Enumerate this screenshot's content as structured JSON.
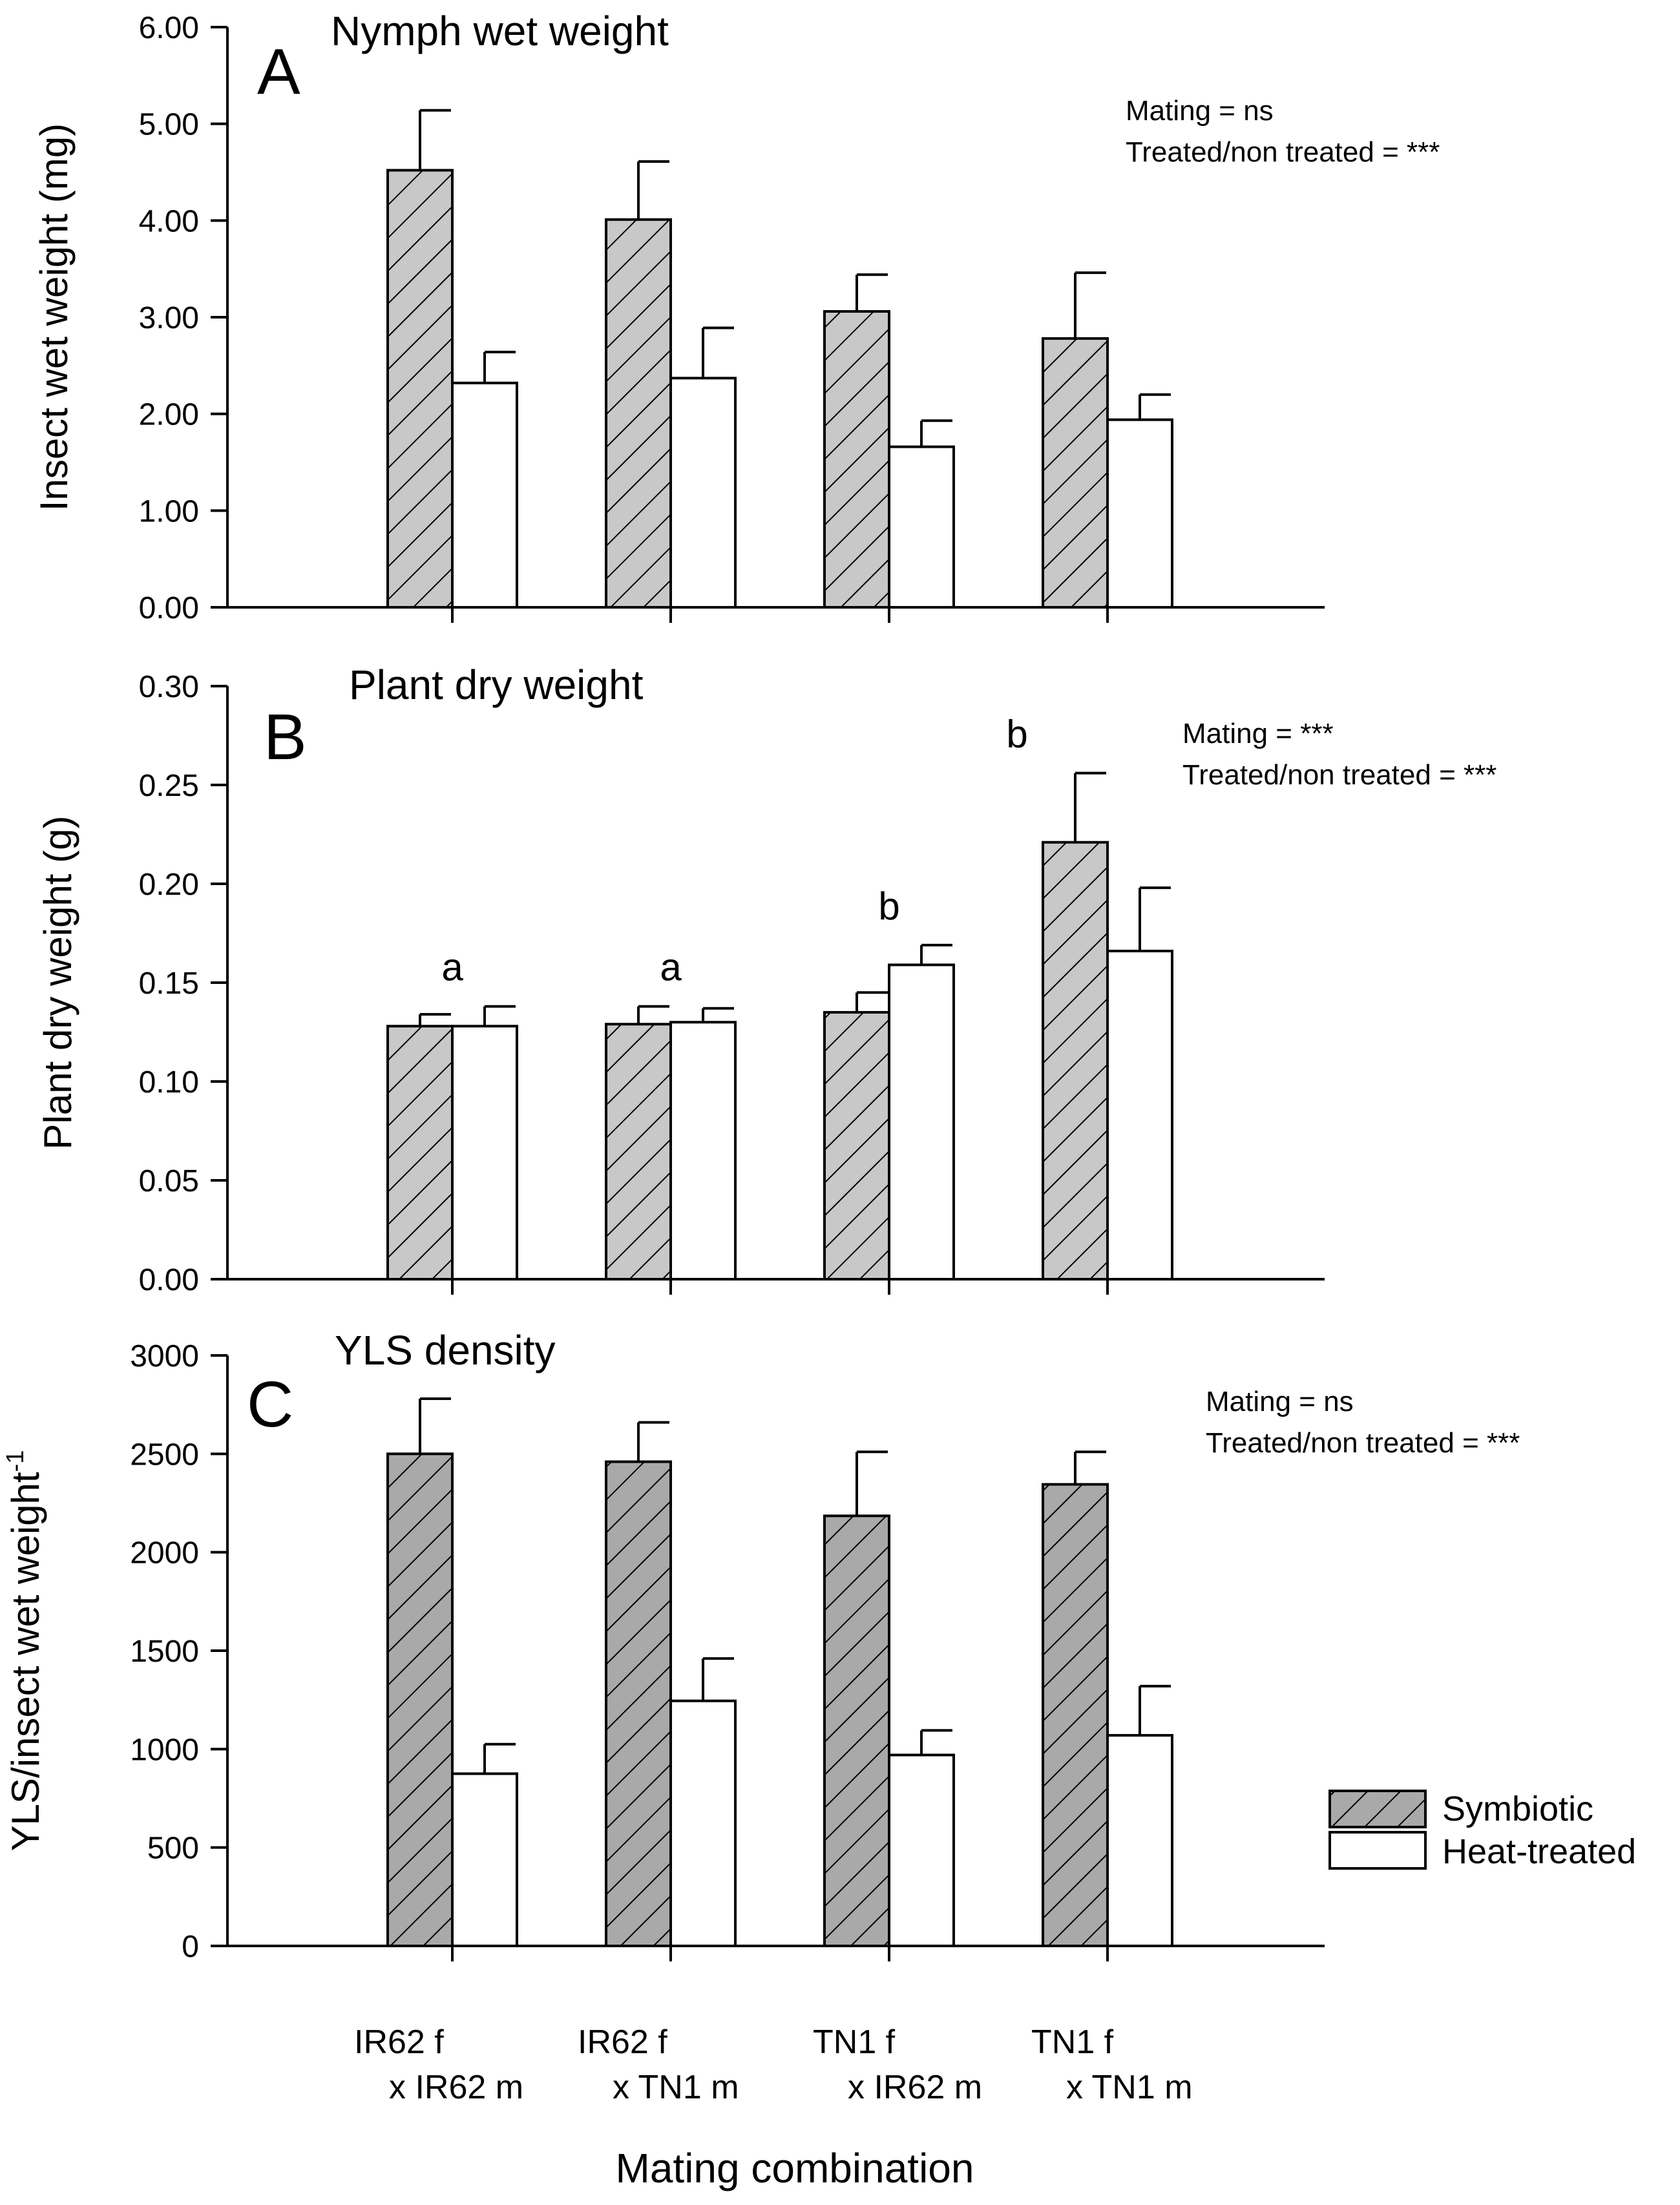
{
  "chart_data": [
    {
      "type": "bar",
      "panel": "A",
      "title": "Nymph wet weight",
      "ylabel": "Insect wet weight (mg)",
      "ylim": [
        0,
        6
      ],
      "yticks": [
        0,
        1,
        2,
        3,
        4,
        5,
        6
      ],
      "ytick_labels": [
        "0.00",
        "1.00",
        "2.00",
        "3.00",
        "4.00",
        "5.00",
        "6.00"
      ],
      "categories": [
        "IR62 f x IR62 m",
        "IR62 f x TN1 m",
        "TN1 f x IR62 m",
        "TN1 f x TN1 m"
      ],
      "series": [
        {
          "name": "Symbiotic",
          "values": [
            4.52,
            4.01,
            3.06,
            2.78
          ],
          "errors": [
            0.62,
            0.6,
            0.38,
            0.68
          ]
        },
        {
          "name": "Heat-treated",
          "values": [
            2.32,
            2.37,
            1.66,
            1.94
          ],
          "errors": [
            0.32,
            0.52,
            0.27,
            0.26
          ]
        }
      ],
      "stats": [
        "Mating = ns",
        "Treated/non treated = ***"
      ],
      "letters": []
    },
    {
      "type": "bar",
      "panel": "B",
      "title": "Plant dry weight",
      "ylabel": "Plant dry weight (g)",
      "ylim": [
        0,
        0.3
      ],
      "yticks": [
        0,
        0.05,
        0.1,
        0.15,
        0.2,
        0.25,
        0.3
      ],
      "ytick_labels": [
        "0.00",
        "0.05",
        "0.10",
        "0.15",
        "0.20",
        "0.25",
        "0.30"
      ],
      "categories": [
        "IR62 f x IR62 m",
        "IR62 f x TN1 m",
        "TN1 f x IR62 m",
        "TN1 f x TN1 m"
      ],
      "series": [
        {
          "name": "Symbiotic",
          "values": [
            0.128,
            0.129,
            0.135,
            0.221
          ],
          "errors": [
            0.006,
            0.009,
            0.01,
            0.035
          ]
        },
        {
          "name": "Heat-treated",
          "values": [
            0.128,
            0.13,
            0.159,
            0.166
          ],
          "errors": [
            0.01,
            0.007,
            0.01,
            0.032
          ]
        }
      ],
      "stats": [
        "Mating = ***",
        "Treated/non treated = ***"
      ],
      "letters": [
        "a",
        "a",
        "b",
        "b"
      ]
    },
    {
      "type": "bar",
      "panel": "C",
      "title": "YLS density",
      "ylabel": "YLS/insect wet weight",
      "ylabel_sup": "-1",
      "ylim": [
        0,
        3000
      ],
      "yticks": [
        0,
        500,
        1000,
        1500,
        2000,
        2500,
        3000
      ],
      "ytick_labels": [
        "0",
        "500",
        "1000",
        "1500",
        "2000",
        "2500",
        "3000"
      ],
      "categories": [
        "IR62 f x IR62 m",
        "IR62 f x TN1 m",
        "TN1 f x IR62 m",
        "TN1 f x TN1 m"
      ],
      "series": [
        {
          "name": "Symbiotic",
          "values": [
            2500,
            2460,
            2185,
            2345
          ],
          "errors": [
            280,
            200,
            325,
            165
          ]
        },
        {
          "name": "Heat-treated",
          "values": [
            875,
            1245,
            970,
            1070
          ],
          "errors": [
            150,
            215,
            125,
            250
          ]
        }
      ],
      "stats": [
        "Mating = ns",
        "Treated/non treated = ***"
      ],
      "letters": []
    }
  ],
  "x_category_labels": [
    [
      "IR62 f",
      "x IR62 m"
    ],
    [
      "IR62 f",
      "x TN1 m"
    ],
    [
      "TN1 f",
      "x IR62 m"
    ],
    [
      "TN1 f",
      "x TN1 m"
    ]
  ],
  "xlabel": "Mating combination",
  "legend": [
    {
      "name": "Symbiotic",
      "style": "hatched"
    },
    {
      "name": "Heat-treated",
      "style": "open"
    }
  ],
  "colors": {
    "hatch_fill_light": "#c8c8c8",
    "hatch_fill_dark": "#a9a9a9",
    "open_fill": "#ffffff",
    "line": "#000000"
  }
}
